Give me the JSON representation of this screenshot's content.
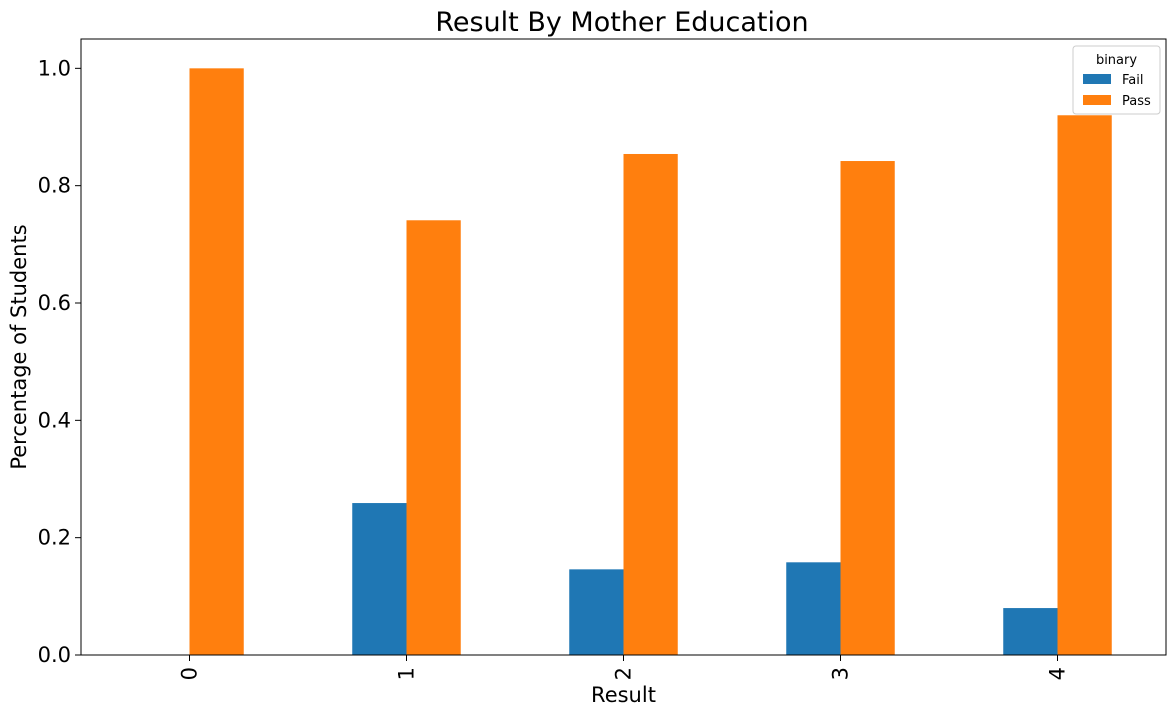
{
  "chart_data": {
    "type": "bar",
    "title": "Result By Mother Education",
    "xlabel": "Result",
    "ylabel": "Percentage of Students",
    "categories": [
      "0",
      "1",
      "2",
      "3",
      "4"
    ],
    "series": [
      {
        "name": "Fail",
        "values": [
          0.0,
          0.259,
          0.146,
          0.158,
          0.08
        ],
        "color": "#1f77b4"
      },
      {
        "name": "Pass",
        "values": [
          1.0,
          0.741,
          0.854,
          0.842,
          0.92
        ],
        "color": "#ff7f0e"
      }
    ],
    "ylim": [
      0,
      1.05
    ],
    "yticks": [
      "0.0",
      "0.2",
      "0.4",
      "0.6",
      "0.8",
      "1.0"
    ],
    "legend": {
      "title": "binary",
      "position": "top-right"
    },
    "grid": false
  }
}
